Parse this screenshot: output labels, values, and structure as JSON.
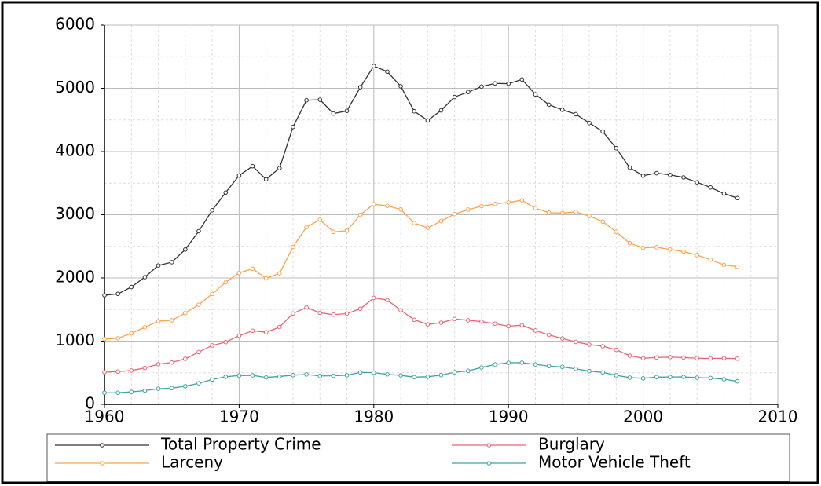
{
  "chart_data": {
    "type": "line",
    "x": [
      1960,
      1961,
      1962,
      1963,
      1964,
      1965,
      1966,
      1967,
      1968,
      1969,
      1970,
      1971,
      1972,
      1973,
      1974,
      1975,
      1976,
      1977,
      1978,
      1979,
      1980,
      1981,
      1982,
      1983,
      1984,
      1985,
      1986,
      1987,
      1988,
      1989,
      1990,
      1991,
      1992,
      1993,
      1994,
      1995,
      1996,
      1997,
      1998,
      1999,
      2000,
      2001,
      2002,
      2003,
      2004,
      2005,
      2006,
      2007
    ],
    "series": [
      {
        "name": "Total Property Crime",
        "color": "#333333",
        "values": [
          1726,
          1748,
          1857,
          2012,
          2197,
          2249,
          2450,
          2739,
          3071,
          3351,
          3621,
          3768,
          3560,
          3737,
          4389,
          4811,
          4820,
          4601,
          4643,
          5017,
          5353,
          5264,
          5032,
          4637,
          4492,
          4651,
          4863,
          4940,
          5027,
          5078,
          5073,
          5140,
          4904,
          4740,
          4660,
          4591,
          4451,
          4316,
          4053,
          3744,
          3618,
          3658,
          3630,
          3591,
          3514,
          3432,
          3335,
          3264
        ]
      },
      {
        "name": "Burglary",
        "color": "#f06272",
        "values": [
          509,
          519,
          535,
          576,
          635,
          663,
          721,
          827,
          932,
          984,
          1085,
          1164,
          1141,
          1223,
          1438,
          1533,
          1448,
          1419,
          1435,
          1512,
          1684,
          1650,
          1489,
          1338,
          1265,
          1292,
          1350,
          1330,
          1309,
          1276,
          1236,
          1252,
          1168,
          1099,
          1042,
          988,
          945,
          919,
          863,
          770,
          729,
          742,
          747,
          741,
          730,
          727,
          730,
          723
        ]
      },
      {
        "name": "Larceny",
        "color": "#ffa24a",
        "values": [
          1035,
          1045,
          1124,
          1219,
          1316,
          1329,
          1443,
          1576,
          1747,
          1931,
          2079,
          2146,
          1994,
          2072,
          2490,
          2805,
          2922,
          2730,
          2747,
          2999,
          3167,
          3140,
          3085,
          2869,
          2791,
          2901,
          3010,
          3081,
          3135,
          3171,
          3195,
          3229,
          3103,
          3033,
          3027,
          3044,
          2980,
          2891,
          2730,
          2550,
          2477,
          2485,
          2450,
          2416,
          2362,
          2288,
          2206,
          2177
        ]
      },
      {
        "name": "Motor Vehicle Theft",
        "color": "#3fa3a3",
        "values": [
          183,
          184,
          197,
          217,
          247,
          257,
          287,
          334,
          393,
          436,
          457,
          459,
          426,
          442,
          462,
          474,
          450,
          452,
          461,
          506,
          502,
          475,
          459,
          431,
          437,
          463,
          508,
          530,
          583,
          631,
          658,
          659,
          632,
          606,
          592,
          561,
          526,
          506,
          460,
          423,
          412,
          431,
          433,
          434,
          422,
          417,
          398,
          364
        ]
      }
    ],
    "xlim": [
      1960,
      2010
    ],
    "xticks": [
      1960,
      1970,
      1980,
      1990,
      2000,
      2010
    ],
    "ylim": [
      0,
      6000
    ],
    "yticks": [
      0,
      1000,
      2000,
      3000,
      4000,
      5000,
      6000
    ],
    "grid": true
  }
}
